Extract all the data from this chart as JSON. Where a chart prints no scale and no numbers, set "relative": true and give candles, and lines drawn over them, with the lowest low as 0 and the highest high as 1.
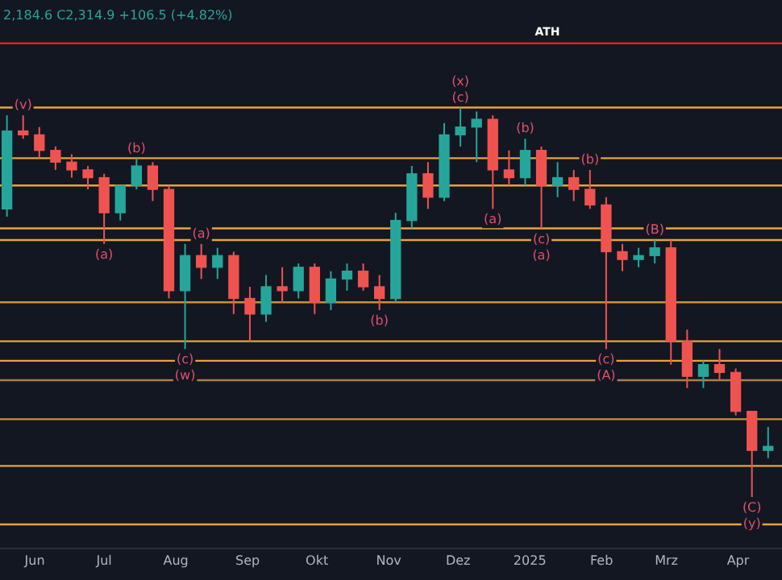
{
  "chart_data": {
    "type": "candlestick",
    "relative": true,
    "x": [
      "2024-05-20",
      "2024-05-27",
      "2024-06-03",
      "2024-06-10",
      "2024-06-17",
      "2024-06-24",
      "2024-07-01",
      "2024-07-08",
      "2024-07-15",
      "2024-07-22",
      "2024-07-29",
      "2024-08-05",
      "2024-08-12",
      "2024-08-19",
      "2024-08-26",
      "2024-09-02",
      "2024-09-09",
      "2024-09-16",
      "2024-09-23",
      "2024-09-30",
      "2024-10-07",
      "2024-10-14",
      "2024-10-21",
      "2024-10-28",
      "2024-11-04",
      "2024-11-11",
      "2024-11-18",
      "2024-11-25",
      "2024-12-02",
      "2024-12-09",
      "2024-12-16",
      "2024-12-23",
      "2024-12-30",
      "2025-01-06",
      "2025-01-13",
      "2025-01-20",
      "2025-01-27",
      "2025-02-03",
      "2025-02-10",
      "2025-02-17",
      "2025-02-24",
      "2025-03-03",
      "2025-03-10",
      "2025-03-17",
      "2025-03-24",
      "2025-03-31",
      "2025-04-07",
      "2025-04-14"
    ],
    "ohlc": [
      [
        0.74,
        0.98,
        0.72,
        0.94
      ],
      [
        0.94,
        0.98,
        0.92,
        0.93
      ],
      [
        0.93,
        0.95,
        0.87,
        0.89
      ],
      [
        0.89,
        0.9,
        0.84,
        0.86
      ],
      [
        0.86,
        0.88,
        0.82,
        0.84
      ],
      [
        0.84,
        0.85,
        0.79,
        0.82
      ],
      [
        0.82,
        0.83,
        0.65,
        0.73
      ],
      [
        0.73,
        0.8,
        0.71,
        0.8
      ],
      [
        0.8,
        0.87,
        0.79,
        0.85
      ],
      [
        0.85,
        0.86,
        0.76,
        0.79
      ],
      [
        0.79,
        0.8,
        0.51,
        0.53
      ],
      [
        0.53,
        0.65,
        0.38,
        0.62
      ],
      [
        0.62,
        0.65,
        0.56,
        0.59
      ],
      [
        0.59,
        0.64,
        0.56,
        0.62
      ],
      [
        0.62,
        0.63,
        0.47,
        0.51
      ],
      [
        0.51,
        0.54,
        0.4,
        0.47
      ],
      [
        0.47,
        0.57,
        0.45,
        0.54
      ],
      [
        0.54,
        0.59,
        0.5,
        0.53
      ],
      [
        0.53,
        0.6,
        0.51,
        0.59
      ],
      [
        0.59,
        0.6,
        0.47,
        0.5
      ],
      [
        0.5,
        0.58,
        0.48,
        0.56
      ],
      [
        0.56,
        0.6,
        0.53,
        0.58
      ],
      [
        0.58,
        0.6,
        0.53,
        0.54
      ],
      [
        0.54,
        0.57,
        0.48,
        0.51
      ],
      [
        0.51,
        0.73,
        0.5,
        0.71
      ],
      [
        0.71,
        0.85,
        0.69,
        0.83
      ],
      [
        0.83,
        0.86,
        0.74,
        0.77
      ],
      [
        0.77,
        0.96,
        0.76,
        0.93
      ],
      [
        0.93,
        1.0,
        0.9,
        0.95
      ],
      [
        0.95,
        0.99,
        0.86,
        0.97
      ],
      [
        0.97,
        0.98,
        0.74,
        0.84
      ],
      [
        0.84,
        0.89,
        0.8,
        0.82
      ],
      [
        0.82,
        0.92,
        0.8,
        0.89
      ],
      [
        0.89,
        0.9,
        0.69,
        0.8
      ],
      [
        0.8,
        0.86,
        0.77,
        0.82
      ],
      [
        0.82,
        0.84,
        0.76,
        0.79
      ],
      [
        0.79,
        0.84,
        0.74,
        0.75
      ],
      [
        0.75,
        0.77,
        0.38,
        0.63
      ],
      [
        0.63,
        0.65,
        0.58,
        0.61
      ],
      [
        0.61,
        0.64,
        0.59,
        0.62
      ],
      [
        0.62,
        0.66,
        0.6,
        0.64
      ],
      [
        0.64,
        0.66,
        0.34,
        0.4
      ],
      [
        0.4,
        0.43,
        0.28,
        0.31
      ],
      [
        0.31,
        0.35,
        0.28,
        0.34
      ],
      [
        0.34,
        0.38,
        0.3,
        0.32
      ],
      [
        0.32,
        0.33,
        0.21,
        0.22
      ],
      [
        0.22,
        0.22,
        0.0,
        0.12
      ],
      [
        0.12,
        0.18,
        0.1,
        0.13
      ]
    ],
    "xlim": [
      "2024-05-17",
      "2025-04-20"
    ],
    "xticks": [
      {
        "value": "2024-06-01",
        "label": "Jun"
      },
      {
        "value": "2024-07-01",
        "label": "Jul"
      },
      {
        "value": "2024-08-01",
        "label": "Aug"
      },
      {
        "value": "2024-09-01",
        "label": "Sep"
      },
      {
        "value": "2024-10-01",
        "label": "Okt"
      },
      {
        "value": "2024-11-01",
        "label": "Nov"
      },
      {
        "value": "2024-12-01",
        "label": "Dez"
      },
      {
        "value": "2025-01-01",
        "label": "2025"
      },
      {
        "value": "2025-02-01",
        "label": "Feb"
      },
      {
        "value": "2025-03-01",
        "label": "Mrz"
      },
      {
        "value": "2025-04-01",
        "label": "Apr"
      }
    ],
    "tick_labels": "x",
    "grid": false,
    "legend": false,
    "ref_lines": [
      {
        "axis": "y",
        "value": 1.165,
        "label": "ATH",
        "color": "#e0202a"
      },
      {
        "axis": "y",
        "value": 1.0,
        "label": null,
        "color": "#e8a33a"
      },
      {
        "axis": "y",
        "value": 0.87,
        "label": null,
        "color": "#e8a33a"
      },
      {
        "axis": "y",
        "value": 0.8,
        "label": null,
        "color": "#e8a33a"
      },
      {
        "axis": "y",
        "value": 0.69,
        "label": null,
        "color": "#e8a33a"
      },
      {
        "axis": "y",
        "value": 0.66,
        "label": null,
        "color": "#e8a33a"
      },
      {
        "axis": "y",
        "value": 0.5,
        "label": null,
        "color": "#c8903a"
      },
      {
        "axis": "y",
        "value": 0.4,
        "label": null,
        "color": "#e8a33a"
      },
      {
        "axis": "y",
        "value": 0.35,
        "label": null,
        "color": "#e8a33a"
      },
      {
        "axis": "y",
        "value": 0.3,
        "label": null,
        "color": "#a88050"
      },
      {
        "axis": "y",
        "value": 0.2,
        "label": null,
        "color": "#c8903a"
      },
      {
        "axis": "y",
        "value": 0.08,
        "label": null,
        "color": "#e8a33a"
      },
      {
        "axis": "y",
        "value": -0.07,
        "label": null,
        "color": "#e8a33a"
      }
    ],
    "annotations": [
      "2,184.6 C2,314.9 +106.5 (+4.82%)",
      {
        "text": "(v)",
        "x": "2024-05-27",
        "y": 0.98
      },
      {
        "text": "(a)",
        "x": "2024-07-01",
        "y": 0.65
      },
      {
        "text": "(b)",
        "x": "2024-07-15",
        "y": 0.87
      },
      {
        "text": "(c)",
        "x": "2024-08-05",
        "y": 0.38
      },
      {
        "text": "(w)",
        "x": "2024-08-05",
        "y": 0.38
      },
      {
        "text": "(a)",
        "x": "2024-08-12",
        "y": 0.65
      },
      {
        "text": "(b)",
        "x": "2024-10-28",
        "y": 0.48
      },
      {
        "text": "(c)",
        "x": "2024-12-02",
        "y": 1.0
      },
      {
        "text": "(x)",
        "x": "2024-12-02",
        "y": 1.0
      },
      {
        "text": "(a)",
        "x": "2024-12-16",
        "y": 0.74
      },
      {
        "text": "(b)",
        "x": "2024-12-30",
        "y": 0.92
      },
      {
        "text": "(c)",
        "x": "2025-01-06",
        "y": 0.69
      },
      {
        "text": "(a)",
        "x": "2025-01-06",
        "y": 0.69
      },
      {
        "text": "(b)",
        "x": "2025-01-27",
        "y": 0.84
      },
      {
        "text": "(c)",
        "x": "2025-02-03",
        "y": 0.38
      },
      {
        "text": "(A)",
        "x": "2025-02-03",
        "y": 0.38
      },
      {
        "text": "(B)",
        "x": "2025-02-24",
        "y": 0.66
      },
      {
        "text": "(C)",
        "x": "2025-04-07",
        "y": 0.0
      },
      {
        "text": "(y)",
        "x": "2025-04-07",
        "y": 0.0
      }
    ]
  }
}
